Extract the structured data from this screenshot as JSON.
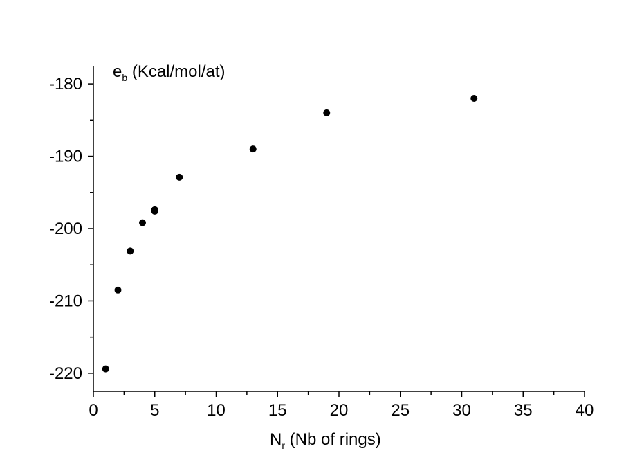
{
  "chart_data": {
    "type": "scatter",
    "ylabel": {
      "main": "e",
      "subscript": "b",
      "rest": " (Kcal/mol/at)"
    },
    "xlabel": {
      "main": "N",
      "subscript": "r",
      "rest": " (Nb of rings)"
    },
    "xlim": [
      0,
      40
    ],
    "ylim": [
      -222.5,
      -177.5
    ],
    "x_ticks": [
      0,
      5,
      10,
      15,
      20,
      25,
      30,
      35,
      40
    ],
    "x_tick_labels": [
      "0",
      "5",
      "10",
      "15",
      "20",
      "25",
      "30",
      "35",
      "40"
    ],
    "y_ticks": [
      -220,
      -210,
      -200,
      -190,
      -180
    ],
    "y_tick_labels": [
      "-220",
      "-210",
      "-200",
      "-190",
      "-180"
    ],
    "grid": false,
    "points": [
      {
        "x": 1,
        "y": -219.4
      },
      {
        "x": 2,
        "y": -208.5
      },
      {
        "x": 3,
        "y": -203.1
      },
      {
        "x": 4,
        "y": -199.2
      },
      {
        "x": 5,
        "y": -197.6
      },
      {
        "x": 5,
        "y": -197.4
      },
      {
        "x": 7,
        "y": -192.9
      },
      {
        "x": 13,
        "y": -189.0
      },
      {
        "x": 19,
        "y": -184.0
      },
      {
        "x": 31,
        "y": -182.0
      }
    ],
    "marker_color": "#000000"
  }
}
